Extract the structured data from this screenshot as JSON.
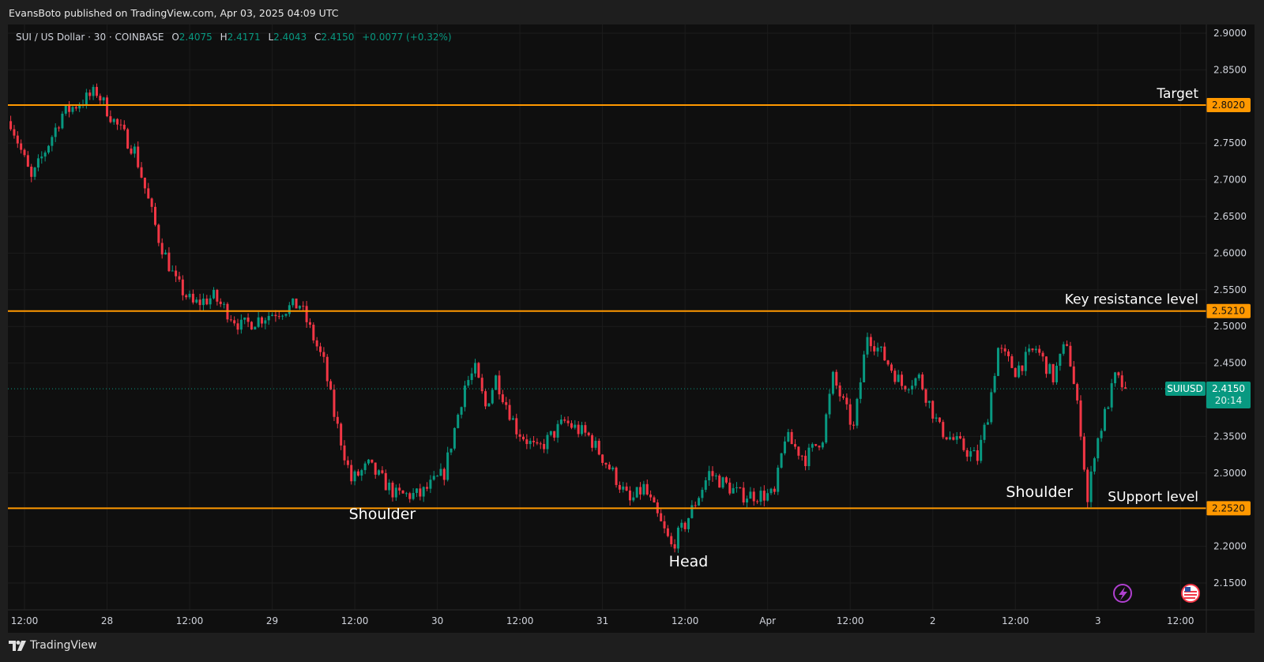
{
  "header": {
    "published": "EvansBoto published on TradingView.com, Apr 03, 2025 04:09 UTC"
  },
  "legend": {
    "symbol": "SUI / US Dollar · 30 · COINBASE",
    "open_label": "O",
    "open": "2.4075",
    "high_label": "H",
    "high": "2.4171",
    "low_label": "L",
    "low": "2.4043",
    "close_label": "C",
    "close": "2.4150",
    "change": "+0.0077 (+0.32%)"
  },
  "footer": {
    "brand": "TradingView"
  },
  "colors": {
    "up": "#089981",
    "down": "#f23645",
    "level": "#ff9800",
    "background": "#0f0f0f"
  },
  "icons": [
    "lightning-icon",
    "us-flag-icon",
    "tradingview-logo-icon"
  ],
  "chart_data": {
    "type": "candlestick",
    "symbol": "SUIUSD",
    "interval": "30",
    "exchange": "COINBASE",
    "ylim": [
      2.12,
      2.92
    ],
    "grid": true,
    "y_ticks": [
      "2.9000",
      "2.8500",
      "2.7500",
      "2.7000",
      "2.6500",
      "2.6000",
      "2.5500",
      "2.5000",
      "2.4500",
      "2.3500",
      "2.3000",
      "2.2000",
      "2.1500"
    ],
    "x_ticks": [
      {
        "label": "12:00",
        "t": "03-27 12:00"
      },
      {
        "label": "28",
        "t": "03-28 00:00"
      },
      {
        "label": "12:00",
        "t": "03-28 12:00"
      },
      {
        "label": "29",
        "t": "03-29 00:00"
      },
      {
        "label": "12:00",
        "t": "03-29 12:00"
      },
      {
        "label": "30",
        "t": "03-30 00:00"
      },
      {
        "label": "12:00",
        "t": "03-30 12:00"
      },
      {
        "label": "31",
        "t": "03-31 00:00"
      },
      {
        "label": "12:00",
        "t": "03-31 12:00"
      },
      {
        "label": "Apr",
        "t": "04-01 00:00"
      },
      {
        "label": "12:00",
        "t": "04-01 12:00"
      },
      {
        "label": "2",
        "t": "04-02 00:00"
      },
      {
        "label": "12:00",
        "t": "04-02 12:00"
      },
      {
        "label": "3",
        "t": "04-03 00:00"
      },
      {
        "label": "12:00",
        "t": "04-03 12:00"
      }
    ],
    "levels": [
      {
        "price": 2.802,
        "price_label": "2.8020",
        "text": "Target"
      },
      {
        "price": 2.521,
        "price_label": "2.5210",
        "text": "Key resistance level"
      },
      {
        "price": 2.252,
        "price_label": "2.2520",
        "text": "SUpport level"
      }
    ],
    "annotations": [
      {
        "text": "Shoulder",
        "t": "03-29 16:00",
        "p": 2.245
      },
      {
        "text": "Head",
        "t": "03-31 12:30",
        "p": 2.18
      },
      {
        "text": "Shoulder",
        "t": "04-02 15:30",
        "p": 2.275
      }
    ],
    "last_price": {
      "symbol": "SUIUSD",
      "price": "2.4150",
      "countdown": "20:14",
      "value": 2.415
    },
    "approximate_close_path": [
      {
        "t": "03-27 10:00",
        "p": 2.78
      },
      {
        "t": "03-27 13:00",
        "p": 2.7
      },
      {
        "t": "03-27 17:30",
        "p": 2.79
      },
      {
        "t": "03-27 22:30",
        "p": 2.82
      },
      {
        "t": "03-28 01:00",
        "p": 2.78
      },
      {
        "t": "03-28 04:00",
        "p": 2.74
      },
      {
        "t": "03-28 07:30",
        "p": 2.62
      },
      {
        "t": "03-28 10:00",
        "p": 2.56
      },
      {
        "t": "03-28 12:30",
        "p": 2.53
      },
      {
        "t": "03-28 15:30",
        "p": 2.54
      },
      {
        "t": "03-28 19:30",
        "p": 2.5
      },
      {
        "t": "03-29 00:30",
        "p": 2.52
      },
      {
        "t": "03-29 04:00",
        "p": 2.53
      },
      {
        "t": "03-29 07:30",
        "p": 2.45
      },
      {
        "t": "03-29 09:00",
        "p": 2.38
      },
      {
        "t": "03-29 11:30",
        "p": 2.29
      },
      {
        "t": "03-29 14:00",
        "p": 2.31
      },
      {
        "t": "03-29 18:00",
        "p": 2.27
      },
      {
        "t": "03-29 21:30",
        "p": 2.27
      },
      {
        "t": "03-30 01:00",
        "p": 2.3
      },
      {
        "t": "03-30 04:00",
        "p": 2.42
      },
      {
        "t": "03-30 05:30",
        "p": 2.44
      },
      {
        "t": "03-30 07:00",
        "p": 2.39
      },
      {
        "t": "03-30 08:30",
        "p": 2.43
      },
      {
        "t": "03-30 11:30",
        "p": 2.36
      },
      {
        "t": "03-30 14:30",
        "p": 2.33
      },
      {
        "t": "03-30 18:30",
        "p": 2.37
      },
      {
        "t": "03-30 22:00",
        "p": 2.35
      },
      {
        "t": "03-31 01:30",
        "p": 2.3
      },
      {
        "t": "03-31 04:00",
        "p": 2.26
      },
      {
        "t": "03-31 06:00",
        "p": 2.28
      },
      {
        "t": "03-31 10:00",
        "p": 2.2
      },
      {
        "t": "03-31 12:00",
        "p": 2.23
      },
      {
        "t": "03-31 13:00",
        "p": 2.25
      },
      {
        "t": "03-31 15:30",
        "p": 2.3
      },
      {
        "t": "03-31 20:00",
        "p": 2.27
      },
      {
        "t": "04-01 01:00",
        "p": 2.27
      },
      {
        "t": "04-01 02:30",
        "p": 2.35
      },
      {
        "t": "04-01 05:30",
        "p": 2.32
      },
      {
        "t": "04-01 08:00",
        "p": 2.35
      },
      {
        "t": "04-01 09:30",
        "p": 2.43
      },
      {
        "t": "04-01 12:30",
        "p": 2.36
      },
      {
        "t": "04-01 14:30",
        "p": 2.49
      },
      {
        "t": "04-01 17:30",
        "p": 2.45
      },
      {
        "t": "04-01 19:30",
        "p": 2.42
      },
      {
        "t": "04-01 22:00",
        "p": 2.43
      },
      {
        "t": "04-02 01:00",
        "p": 2.36
      },
      {
        "t": "04-02 05:00",
        "p": 2.33
      },
      {
        "t": "04-02 06:30",
        "p": 2.32
      },
      {
        "t": "04-02 08:00",
        "p": 2.38
      },
      {
        "t": "04-02 09:30",
        "p": 2.47
      },
      {
        "t": "04-02 12:00",
        "p": 2.44
      },
      {
        "t": "04-02 15:00",
        "p": 2.47
      },
      {
        "t": "04-02 17:30",
        "p": 2.43
      },
      {
        "t": "04-02 19:30",
        "p": 2.48
      },
      {
        "t": "04-02 21:30",
        "p": 2.36
      },
      {
        "t": "04-02 22:30",
        "p": 2.26
      },
      {
        "t": "04-02 23:30",
        "p": 2.33
      },
      {
        "t": "04-03 01:00",
        "p": 2.38
      },
      {
        "t": "04-03 02:30",
        "p": 2.43
      },
      {
        "t": "04-03 04:00",
        "p": 2.415
      }
    ]
  }
}
